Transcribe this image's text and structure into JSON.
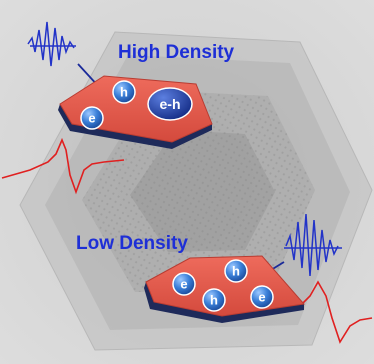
{
  "labels": {
    "high": "High Density",
    "low": "Low Density"
  },
  "particles": {
    "electron": "e",
    "hole": "h",
    "exciton": "e-h"
  },
  "colors": {
    "title": "#1e2fd6",
    "flake_top": "#e0574a",
    "flake_side": "#1e2a5a",
    "particle": "#3a7fd8",
    "exciton": "#1e3a9a",
    "pulse": "#2233c8",
    "signal": "#e02020"
  }
}
